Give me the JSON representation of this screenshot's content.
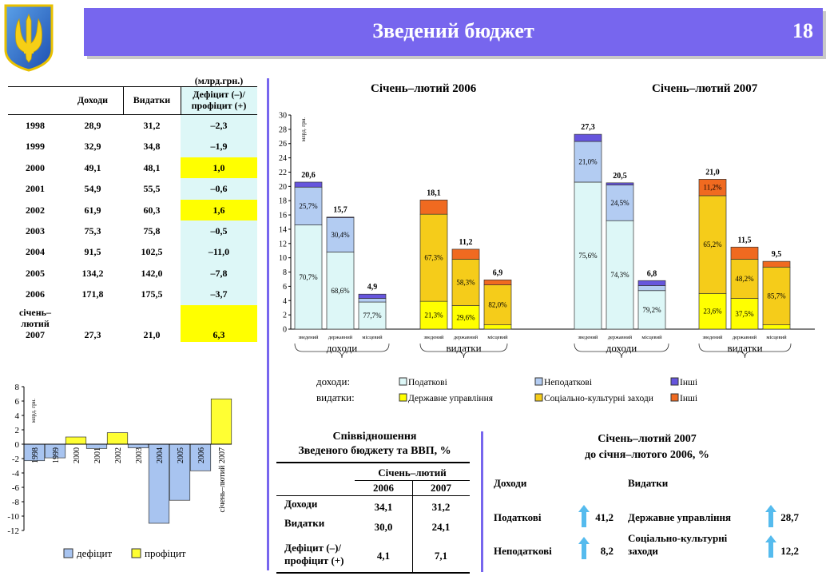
{
  "header": {
    "title": "Зведений бюджет",
    "page_number": "18"
  },
  "budget_table": {
    "unit": "(млрд.грн.)",
    "headers": [
      "Доходи",
      "Видатки",
      "Дефіцит (–)/ профіцит (+)"
    ],
    "rows": [
      {
        "year": "1998",
        "income": "28,9",
        "spending": "31,2",
        "balance": "–2,3",
        "highlight": false
      },
      {
        "year": "1999",
        "income": "32,9",
        "spending": "34,8",
        "balance": "–1,9",
        "highlight": false
      },
      {
        "year": "2000",
        "income": "49,1",
        "spending": "48,1",
        "balance": "1,0",
        "highlight": true
      },
      {
        "year": "2001",
        "income": "54,9",
        "spending": "55,5",
        "balance": "–0,6",
        "highlight": false
      },
      {
        "year": "2002",
        "income": "61,9",
        "spending": "60,3",
        "balance": "1,6",
        "highlight": true
      },
      {
        "year": "2003",
        "income": "75,3",
        "spending": "75,8",
        "balance": "–0,5",
        "highlight": false
      },
      {
        "year": "2004",
        "income": "91,5",
        "spending": "102,5",
        "balance": "–11,0",
        "highlight": false
      },
      {
        "year": "2005",
        "income": "134,2",
        "spending": "142,0",
        "balance": "–7,8",
        "highlight": false
      },
      {
        "year": "2006",
        "income": "171,8",
        "spending": "175,5",
        "balance": "–3,7",
        "highlight": false
      },
      {
        "year": "січень– лютий 2007",
        "income": "27,3",
        "spending": "21,0",
        "balance": "6,3",
        "highlight": true
      }
    ]
  },
  "colors": {
    "banner": "#7766ee",
    "light": "#ddf7f7",
    "nontax": "#b3ccf2",
    "other": "#6655dd",
    "yellow": "#ffff00",
    "gold": "#f5cc1a",
    "orange": "#f06a20",
    "deficit": "#a8c4f0",
    "surplus": "#ffff33"
  },
  "chart_data": [
    {
      "type": "bar",
      "title": "",
      "ylabel": "млрд. грн.",
      "ylim": [
        -12,
        8
      ],
      "yticks": [
        8,
        6,
        4,
        2,
        0,
        -2,
        -4,
        -6,
        -8,
        -10,
        -12
      ],
      "categories": [
        "1998",
        "1999",
        "2000",
        "2001",
        "2002",
        "2003",
        "2004",
        "2005",
        "2006",
        "січень–лютий 2007"
      ],
      "values": [
        -2.3,
        -1.9,
        1.0,
        -0.6,
        1.6,
        -0.5,
        -11.0,
        -7.8,
        -3.7,
        6.3
      ],
      "legend": [
        "дефіцит",
        "профіцит"
      ]
    },
    {
      "type": "bar",
      "stacked": true,
      "ylabel": "млрд. грн.",
      "ylim": [
        0,
        30
      ],
      "yticks": [
        0,
        2,
        4,
        6,
        8,
        10,
        12,
        14,
        16,
        18,
        20,
        22,
        24,
        26,
        28,
        30
      ],
      "periods": [
        "Січень–лютий 2006",
        "Січень–лютий 2007"
      ],
      "group_labels": [
        "доходи",
        "видатки"
      ],
      "bar_categories": [
        "зведений",
        "державний",
        "місцевий"
      ],
      "bars": [
        {
          "period": 0,
          "group": "доходи",
          "name": "зведений",
          "total": "20,6",
          "segments": [
            {
              "series": "Податкові",
              "value": 14.6,
              "label": "70,7%"
            },
            {
              "series": "Неподаткові",
              "value": 5.3,
              "label": "25,7%"
            },
            {
              "series": "Інші",
              "value": 0.7,
              "label": ""
            }
          ]
        },
        {
          "period": 0,
          "group": "доходи",
          "name": "державний",
          "total": "15,7",
          "segments": [
            {
              "series": "Податкові",
              "value": 10.8,
              "label": "68,6%"
            },
            {
              "series": "Неподаткові",
              "value": 4.8,
              "label": "30,4%"
            },
            {
              "series": "Інші",
              "value": 0.1,
              "label": ""
            }
          ]
        },
        {
          "period": 0,
          "group": "доходи",
          "name": "місцевий",
          "total": "4,9",
          "segments": [
            {
              "series": "Податкові",
              "value": 3.8,
              "label": "77,7%"
            },
            {
              "series": "Неподаткові",
              "value": 0.5,
              "label": ""
            },
            {
              "series": "Інші",
              "value": 0.6,
              "label": ""
            }
          ]
        },
        {
          "period": 0,
          "group": "видатки",
          "name": "зведений",
          "total": "18,1",
          "segments": [
            {
              "series": "Державне управління",
              "value": 3.9,
              "label": "21,3%"
            },
            {
              "series": "Соціально-культурні заходи",
              "value": 12.2,
              "label": "67,3%"
            },
            {
              "series": "Інші",
              "value": 2.0,
              "label": ""
            }
          ]
        },
        {
          "period": 0,
          "group": "видатки",
          "name": "державний",
          "total": "11,2",
          "segments": [
            {
              "series": "Державне управління",
              "value": 3.3,
              "label": "29,6%"
            },
            {
              "series": "Соціально-культурні заходи",
              "value": 6.5,
              "label": "58,3%"
            },
            {
              "series": "Інші",
              "value": 1.4,
              "label": ""
            }
          ]
        },
        {
          "period": 0,
          "group": "видатки",
          "name": "місцевий",
          "total": "6,9",
          "segments": [
            {
              "series": "Державне управління",
              "value": 0.6,
              "label": ""
            },
            {
              "series": "Соціально-культурні заходи",
              "value": 5.6,
              "label": "82,0%"
            },
            {
              "series": "Інші",
              "value": 0.7,
              "label": ""
            }
          ]
        },
        {
          "period": 1,
          "group": "доходи",
          "name": "зведений",
          "total": "27,3",
          "segments": [
            {
              "series": "Податкові",
              "value": 20.6,
              "label": "75,6%"
            },
            {
              "series": "Неподаткові",
              "value": 5.7,
              "label": "21,0%"
            },
            {
              "series": "Інші",
              "value": 1.0,
              "label": ""
            }
          ]
        },
        {
          "period": 1,
          "group": "доходи",
          "name": "державний",
          "total": "20,5",
          "segments": [
            {
              "series": "Податкові",
              "value": 15.2,
              "label": "74,3%"
            },
            {
              "series": "Неподаткові",
              "value": 5.0,
              "label": "24,5%"
            },
            {
              "series": "Інші",
              "value": 0.3,
              "label": ""
            }
          ]
        },
        {
          "period": 1,
          "group": "доходи",
          "name": "місцевий",
          "total": "6,8",
          "segments": [
            {
              "series": "Податкові",
              "value": 5.4,
              "label": "79,2%"
            },
            {
              "series": "Неподаткові",
              "value": 0.7,
              "label": ""
            },
            {
              "series": "Інші",
              "value": 0.7,
              "label": ""
            }
          ]
        },
        {
          "period": 1,
          "group": "видатки",
          "name": "зведений",
          "total": "21,0",
          "segments": [
            {
              "series": "Державне управління",
              "value": 5.0,
              "label": "23,6%"
            },
            {
              "series": "Соціально-культурні заходи",
              "value": 13.7,
              "label": "65,2%"
            },
            {
              "series": "Інші",
              "value": 2.3,
              "label": "11,2%"
            }
          ]
        },
        {
          "period": 1,
          "group": "видатки",
          "name": "державний",
          "total": "11,5",
          "segments": [
            {
              "series": "Державне управління",
              "value": 4.3,
              "label": "37,5%"
            },
            {
              "series": "Соціально-культурні заходи",
              "value": 5.5,
              "label": "48,2%"
            },
            {
              "series": "Інші",
              "value": 1.7,
              "label": ""
            }
          ]
        },
        {
          "period": 1,
          "group": "видатки",
          "name": "місцевий",
          "total": "9,5",
          "segments": [
            {
              "series": "Державне управління",
              "value": 0.6,
              "label": ""
            },
            {
              "series": "Соціально-культурні заходи",
              "value": 8.1,
              "label": "85,7%"
            },
            {
              "series": "Інші",
              "value": 0.8,
              "label": ""
            }
          ]
        }
      ],
      "legend": {
        "income_label": "доходи:",
        "spending_label": "видатки:",
        "income": [
          "Податкові",
          "Неподаткові",
          "Інші"
        ],
        "spending": [
          "Державне управління",
          "Соціально-культурні заходи",
          "Інші"
        ]
      }
    }
  ],
  "gdp_table": {
    "title_line1": "Співвідношення",
    "title_line2": "Зведеного бюджету та ВВП, %",
    "period": "Січень–лютий",
    "years": [
      "2006",
      "2007"
    ],
    "rows": [
      {
        "label": "Доходи",
        "v2006": "34,1",
        "v2007": "31,2"
      },
      {
        "label": "Видатки",
        "v2006": "30,0",
        "v2007": "24,1"
      },
      {
        "label": "Дефіцит (–)/ профіцит (+)",
        "v2006": "4,1",
        "v2007": "7,1"
      }
    ]
  },
  "growth": {
    "title_line1": "Січень–лютий 2007",
    "title_line2": "до січня–лютого 2006, %",
    "income_header": "Доходи",
    "spending_header": "Видатки",
    "income_items": [
      {
        "label": "Податкові",
        "value": "41,2"
      },
      {
        "label": "Неподаткові",
        "value": "8,2"
      }
    ],
    "spending_items": [
      {
        "label": "Державне управління",
        "value": "28,7"
      },
      {
        "label": "Соціально-культурні заходи",
        "value": "12,2"
      }
    ]
  }
}
